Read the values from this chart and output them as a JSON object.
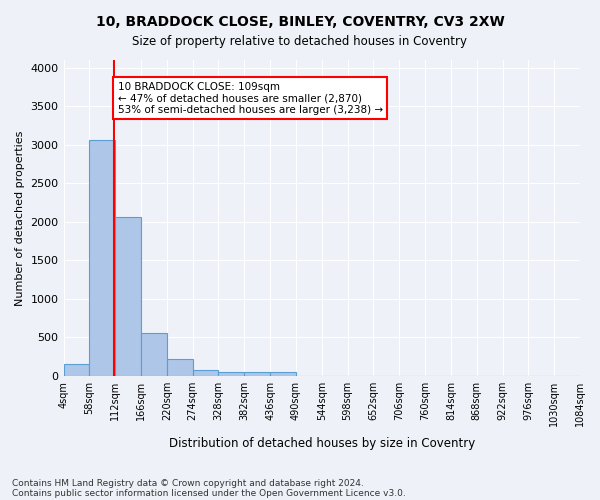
{
  "title1": "10, BRADDOCK CLOSE, BINLEY, COVENTRY, CV3 2XW",
  "title2": "Size of property relative to detached houses in Coventry",
  "xlabel": "Distribution of detached houses by size in Coventry",
  "ylabel": "Number of detached properties",
  "bin_labels": [
    "4sqm",
    "58sqm",
    "112sqm",
    "166sqm",
    "220sqm",
    "274sqm",
    "328sqm",
    "382sqm",
    "436sqm",
    "490sqm",
    "544sqm",
    "598sqm",
    "652sqm",
    "706sqm",
    "760sqm",
    "814sqm",
    "868sqm",
    "922sqm",
    "976sqm",
    "1030sqm",
    "1084sqm"
  ],
  "bar_heights": [
    150,
    3060,
    2060,
    560,
    220,
    75,
    55,
    45,
    55,
    0,
    0,
    0,
    0,
    0,
    0,
    0,
    0,
    0,
    0,
    0
  ],
  "bar_color": "#aec6e8",
  "bar_edge_color": "#5a9fd4",
  "property_size": 109,
  "bin_edges": [
    4,
    58,
    112,
    166,
    220,
    274,
    328,
    382,
    436,
    490,
    544,
    598,
    652,
    706,
    760,
    814,
    868,
    922,
    976,
    1030,
    1084
  ],
  "annotation_text": "10 BRADDOCK CLOSE: 109sqm\n← 47% of detached houses are smaller (2,870)\n53% of semi-detached houses are larger (3,238) →",
  "annotation_box_color": "white",
  "annotation_box_edge_color": "red",
  "vline_color": "red",
  "footer1": "Contains HM Land Registry data © Crown copyright and database right 2024.",
  "footer2": "Contains public sector information licensed under the Open Government Licence v3.0.",
  "bg_color": "#eef2f8",
  "ylim": [
    0,
    4100
  ],
  "yticks": [
    0,
    500,
    1000,
    1500,
    2000,
    2500,
    3000,
    3500,
    4000
  ]
}
